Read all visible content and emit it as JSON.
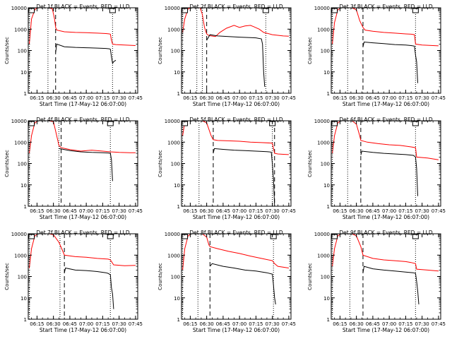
{
  "figure": {
    "xlabel": "Start Time (17-May-12 06:07:00)",
    "ylabel": "Counts/sec",
    "series_names": [
      "BLACK = Events",
      "RED = LLD"
    ],
    "colors": {
      "events": "#000000",
      "lld": "#ff0000",
      "axes": "#000000"
    },
    "xticks": [
      "06:15",
      "06:30",
      "06:45",
      "07:00",
      "07:15",
      "07:30",
      "07:45"
    ],
    "yticks": [
      "1",
      "10",
      "100",
      "1000",
      "10000"
    ]
  },
  "chart_data": [
    {
      "type": "line",
      "title": "Det 1f BLACK = Events, RED = LLD",
      "xlabel": "Start Time (17-May-12 06:07:00)",
      "ylabel": "Counts/sec",
      "yscale": "log",
      "ylim": [
        1,
        10000
      ],
      "xlim": [
        "06:07",
        "07:47"
      ],
      "x_unit": "HH:MM",
      "dotted_lines": [
        "06:08",
        "06:25",
        "07:24"
      ],
      "dashed_lines": [
        "06:32"
      ],
      "series": [
        {
          "name": "RED = LLD",
          "color": "#ff0000",
          "x": [
            "06:08",
            "06:10",
            "06:13",
            "06:15",
            "06:20",
            "06:25",
            "06:29",
            "06:31",
            "06:32",
            "06:33",
            "06:40",
            "06:50",
            "07:00",
            "07:10",
            "07:18",
            "07:21",
            "07:22",
            "07:23",
            "07:24",
            "07:27",
            "07:30",
            "07:35",
            "07:40",
            "07:45"
          ],
          "y": [
            200,
            3000,
            8000,
            10000,
            10000,
            10000,
            9000,
            3000,
            1200,
            900,
            750,
            700,
            680,
            650,
            620,
            600,
            580,
            300,
            200,
            190,
            185,
            180,
            175,
            170
          ]
        },
        {
          "name": "BLACK = Events",
          "color": "#000000",
          "x": [
            "06:32",
            "06:33",
            "06:40",
            "06:50",
            "07:00",
            "07:10",
            "07:18",
            "07:21",
            "07:22",
            "07:23",
            "07:24",
            "07:25",
            "07:27"
          ],
          "y": [
            80,
            200,
            150,
            140,
            135,
            130,
            125,
            120,
            115,
            50,
            25,
            30,
            35
          ]
        }
      ]
    },
    {
      "type": "line",
      "title": "Det 2f BLACK = Events, RED = LLD",
      "xlabel": "Start Time (17-May-12 06:07:00)",
      "ylabel": "Counts/sec",
      "yscale": "log",
      "ylim": [
        1,
        10000
      ],
      "xlim": [
        "06:07",
        "07:47"
      ],
      "x_unit": "HH:MM",
      "dotted_lines": [
        "06:08",
        "06:21",
        "06:26",
        "07:24"
      ],
      "dashed_lines": [
        "06:30"
      ],
      "series": [
        {
          "name": "RED = LLD",
          "color": "#ff0000",
          "x": [
            "06:08",
            "06:10",
            "06:13",
            "06:16",
            "06:20",
            "06:24",
            "06:26",
            "06:28",
            "06:30",
            "06:32",
            "06:38",
            "06:42",
            "06:48",
            "06:55",
            "07:00",
            "07:05",
            "07:10",
            "07:13",
            "07:18",
            "07:22",
            "07:30",
            "07:40",
            "07:45"
          ],
          "y": [
            700,
            3000,
            9000,
            10000,
            10000,
            10000,
            5000,
            1200,
            600,
            500,
            450,
            700,
            1100,
            1500,
            1200,
            1400,
            1500,
            1300,
            1000,
            700,
            550,
            480,
            470
          ]
        },
        {
          "name": "BLACK = Events",
          "color": "#000000",
          "x": [
            "06:30",
            "06:33",
            "06:40",
            "06:50",
            "07:00",
            "07:10",
            "07:15",
            "07:20",
            "07:21",
            "07:22",
            "07:23"
          ],
          "y": [
            300,
            550,
            480,
            450,
            420,
            400,
            390,
            350,
            200,
            10,
            2
          ]
        }
      ]
    },
    {
      "type": "line",
      "title": "Det 3f BLACK = Events, RED = LLD",
      "xlabel": "Start Time (17-May-12 06:07:00)",
      "ylabel": "Counts/sec",
      "yscale": "log",
      "ylim": [
        1,
        10000
      ],
      "xlim": [
        "06:07",
        "07:47"
      ],
      "x_unit": "HH:MM",
      "dotted_lines": [
        "06:08",
        "06:22",
        "07:24"
      ],
      "dashed_lines": [
        "06:36"
      ],
      "series": [
        {
          "name": "RED = LLD",
          "color": "#ff0000",
          "x": [
            "06:08",
            "06:10",
            "06:13",
            "06:16",
            "06:20",
            "06:26",
            "06:30",
            "06:33",
            "06:36",
            "06:38",
            "06:45",
            "06:55",
            "07:05",
            "07:15",
            "07:20",
            "07:23",
            "07:24",
            "07:30",
            "07:40",
            "07:45"
          ],
          "y": [
            200,
            2000,
            8000,
            10000,
            10000,
            10000,
            8000,
            2500,
            1200,
            900,
            800,
            700,
            650,
            600,
            580,
            550,
            200,
            180,
            170,
            165
          ]
        },
        {
          "name": "BLACK = Events",
          "color": "#000000",
          "x": [
            "06:36",
            "06:37",
            "06:45",
            "06:55",
            "07:05",
            "07:15",
            "07:20",
            "07:23",
            "07:24",
            "07:25",
            "07:26"
          ],
          "y": [
            150,
            250,
            230,
            210,
            190,
            180,
            170,
            160,
            60,
            30,
            3
          ]
        }
      ]
    },
    {
      "type": "line",
      "title": "Det 4f BLACK = Events, RED = LLD",
      "xlabel": "Start Time (17-May-12 06:07:00)",
      "ylabel": "Counts/sec",
      "yscale": "log",
      "ylim": [
        1,
        10000
      ],
      "xlim": [
        "06:07",
        "07:47"
      ],
      "x_unit": "HH:MM",
      "dotted_lines": [
        "06:08",
        "06:35",
        "07:22"
      ],
      "dashed_lines": [
        "06:37"
      ],
      "series": [
        {
          "name": "RED = LLD",
          "color": "#ff0000",
          "x": [
            "06:08",
            "06:10",
            "06:13",
            "06:16",
            "06:20",
            "06:26",
            "06:30",
            "06:33",
            "06:35",
            "06:37",
            "06:45",
            "06:55",
            "07:05",
            "07:15",
            "07:22",
            "07:30",
            "07:40",
            "07:45"
          ],
          "y": [
            300,
            2000,
            8000,
            10000,
            10000,
            10000,
            9000,
            2000,
            700,
            550,
            450,
            380,
            420,
            380,
            350,
            330,
            320,
            320
          ]
        },
        {
          "name": "BLACK = Events",
          "color": "#000000",
          "x": [
            "06:35",
            "06:37",
            "06:45",
            "06:55",
            "07:05",
            "07:15",
            "07:20",
            "07:22",
            "07:23",
            "07:24"
          ],
          "y": [
            500,
            480,
            400,
            350,
            330,
            320,
            310,
            300,
            150,
            15
          ]
        }
      ]
    },
    {
      "type": "line",
      "title": "Det 5f BLACK = Events, RED = LLD",
      "xlabel": "Start Time (17-May-12 06:07:00)",
      "ylabel": "Counts/sec",
      "yscale": "log",
      "ylim": [
        1,
        10000
      ],
      "xlim": [
        "06:07",
        "07:47"
      ],
      "x_unit": "HH:MM",
      "dotted_lines": [
        "06:08",
        "06:23",
        "07:30"
      ],
      "dashed_lines": [
        "06:36",
        "07:32"
      ],
      "series": [
        {
          "name": "RED = LLD",
          "color": "#ff0000",
          "x": [
            "06:08",
            "06:10",
            "06:13",
            "06:16",
            "06:20",
            "06:26",
            "06:30",
            "06:34",
            "06:36",
            "06:40",
            "06:50",
            "07:00",
            "07:10",
            "07:20",
            "07:30",
            "07:32",
            "07:35",
            "07:40",
            "07:45"
          ],
          "y": [
            2000,
            8000,
            10000,
            10000,
            10000,
            10000,
            8000,
            2000,
            1300,
            1200,
            1150,
            1100,
            1000,
            950,
            900,
            300,
            280,
            270,
            260
          ]
        },
        {
          "name": "BLACK = Events",
          "color": "#000000",
          "x": [
            "06:36",
            "06:37",
            "06:45",
            "06:55",
            "07:05",
            "07:15",
            "07:25",
            "07:29",
            "07:30",
            "07:31",
            "07:32"
          ],
          "y": [
            300,
            500,
            460,
            420,
            400,
            380,
            360,
            340,
            100,
            20,
            1
          ]
        }
      ]
    },
    {
      "type": "line",
      "title": "Det 6f BLACK = Events, RED = LLD",
      "xlabel": "Start Time (17-May-12 06:07:00)",
      "ylabel": "Counts/sec",
      "yscale": "log",
      "ylim": [
        1,
        10000
      ],
      "xlim": [
        "06:07",
        "07:47"
      ],
      "x_unit": "HH:MM",
      "dotted_lines": [
        "06:08",
        "06:22",
        "07:24"
      ],
      "dashed_lines": [
        "06:34"
      ],
      "series": [
        {
          "name": "RED = LLD",
          "color": "#ff0000",
          "x": [
            "06:08",
            "06:10",
            "06:13",
            "06:16",
            "06:20",
            "06:26",
            "06:30",
            "06:33",
            "06:34",
            "06:40",
            "06:50",
            "07:00",
            "07:10",
            "07:20",
            "07:24",
            "07:25",
            "07:35",
            "07:45"
          ],
          "y": [
            300,
            2000,
            8000,
            10000,
            10000,
            10000,
            7000,
            2000,
            1200,
            1000,
            850,
            750,
            700,
            600,
            550,
            200,
            180,
            150
          ]
        },
        {
          "name": "BLACK = Events",
          "color": "#000000",
          "x": [
            "06:34",
            "06:35",
            "06:45",
            "06:55",
            "07:05",
            "07:15",
            "07:22",
            "07:24",
            "07:25",
            "07:26"
          ],
          "y": [
            250,
            380,
            330,
            300,
            280,
            260,
            240,
            200,
            60,
            3
          ]
        }
      ]
    },
    {
      "type": "line",
      "title": "Det 7f BLACK = Events, RED = LLD",
      "xlabel": "Start Time (17-May-12 06:07:00)",
      "ylabel": "Counts/sec",
      "yscale": "log",
      "ylim": [
        1,
        10000
      ],
      "xlim": [
        "06:07",
        "07:47"
      ],
      "x_unit": "HH:MM",
      "dotted_lines": [
        "06:08",
        "06:36",
        "07:22"
      ],
      "dashed_lines": [
        "06:40"
      ],
      "series": [
        {
          "name": "RED = LLD",
          "color": "#ff0000",
          "x": [
            "06:08",
            "06:10",
            "06:13",
            "06:16",
            "06:20",
            "06:26",
            "06:30",
            "06:35",
            "06:38",
            "06:40",
            "06:50",
            "07:00",
            "07:10",
            "07:20",
            "07:22",
            "07:25",
            "07:35",
            "07:45"
          ],
          "y": [
            250,
            2000,
            8000,
            10000,
            10000,
            10000,
            9000,
            4000,
            1800,
            1000,
            850,
            800,
            700,
            650,
            600,
            350,
            320,
            330
          ]
        },
        {
          "name": "BLACK = Events",
          "color": "#000000",
          "x": [
            "06:40",
            "06:41",
            "06:50",
            "07:00",
            "07:10",
            "07:18",
            "07:20",
            "07:22",
            "07:23",
            "07:24",
            "07:25"
          ],
          "y": [
            150,
            250,
            200,
            190,
            170,
            150,
            140,
            120,
            30,
            15,
            3
          ]
        }
      ]
    },
    {
      "type": "line",
      "title": "Det 8f BLACK = Events, RED = LLD",
      "xlabel": "Start Time (17-May-12 06:07:00)",
      "ylabel": "Counts/sec",
      "yscale": "log",
      "ylim": [
        1,
        10000
      ],
      "xlim": [
        "06:07",
        "07:47"
      ],
      "x_unit": "HH:MM",
      "dotted_lines": [
        "06:08",
        "06:22",
        "07:31"
      ],
      "dashed_lines": [
        "06:33"
      ],
      "series": [
        {
          "name": "RED = LLD",
          "color": "#ff0000",
          "x": [
            "06:08",
            "06:10",
            "06:13",
            "06:16",
            "06:20",
            "06:26",
            "06:30",
            "06:32",
            "06:33",
            "06:40",
            "06:50",
            "07:00",
            "07:10",
            "07:20",
            "07:30",
            "07:32",
            "07:35",
            "07:45"
          ],
          "y": [
            200,
            2000,
            8000,
            10000,
            10000,
            10000,
            7000,
            3000,
            2500,
            2000,
            1500,
            1200,
            900,
            700,
            550,
            400,
            300,
            250
          ]
        },
        {
          "name": "BLACK = Events",
          "color": "#000000",
          "x": [
            "06:33",
            "06:35",
            "06:45",
            "06:55",
            "07:05",
            "07:15",
            "07:25",
            "07:30",
            "07:31",
            "07:32",
            "07:33"
          ],
          "y": [
            300,
            400,
            300,
            250,
            200,
            180,
            150,
            130,
            40,
            10,
            5
          ]
        }
      ]
    },
    {
      "type": "line",
      "title": "Det 9f BLACK = Events, RED = LLD",
      "xlabel": "Start Time (17-May-12 06:07:00)",
      "ylabel": "Counts/sec",
      "yscale": "log",
      "ylim": [
        1,
        10000
      ],
      "xlim": [
        "06:07",
        "07:47"
      ],
      "x_unit": "HH:MM",
      "dotted_lines": [
        "06:08",
        "06:24",
        "07:24"
      ],
      "dashed_lines": [
        "06:36"
      ],
      "series": [
        {
          "name": "RED = LLD",
          "color": "#ff0000",
          "x": [
            "06:08",
            "06:10",
            "06:13",
            "06:16",
            "06:20",
            "06:26",
            "06:30",
            "06:34",
            "06:36",
            "06:45",
            "06:55",
            "07:05",
            "07:15",
            "07:20",
            "07:24",
            "07:25",
            "07:35",
            "07:45"
          ],
          "y": [
            300,
            2000,
            8000,
            10000,
            10000,
            10000,
            8000,
            2500,
            1000,
            700,
            600,
            550,
            500,
            450,
            400,
            220,
            200,
            180
          ]
        },
        {
          "name": "BLACK = Events",
          "color": "#000000",
          "x": [
            "06:36",
            "06:37",
            "06:45",
            "06:55",
            "07:05",
            "07:15",
            "07:22",
            "07:24",
            "07:25",
            "07:26",
            "07:27"
          ],
          "y": [
            150,
            300,
            230,
            200,
            180,
            160,
            150,
            140,
            60,
            20,
            5
          ]
        }
      ]
    }
  ]
}
